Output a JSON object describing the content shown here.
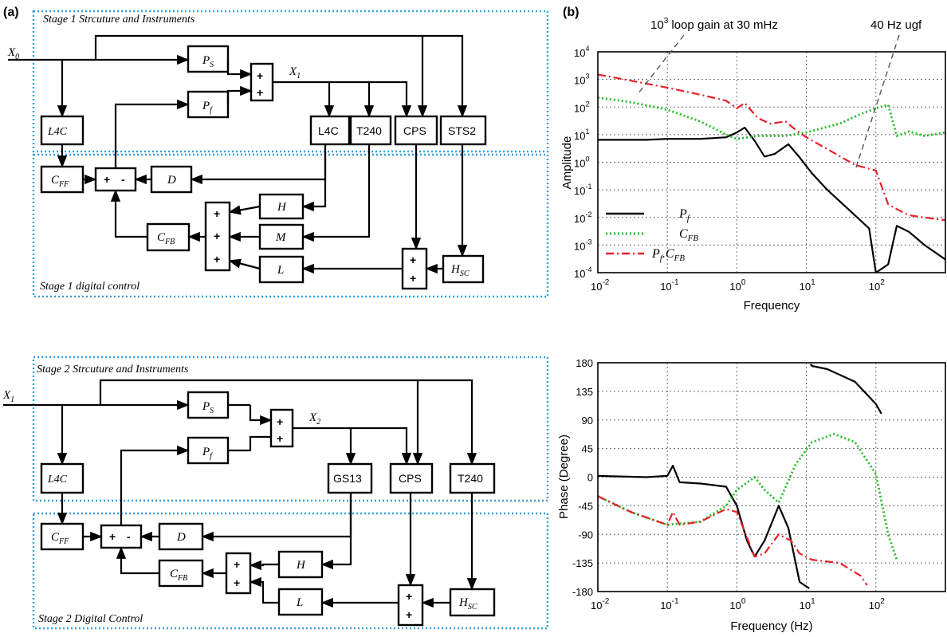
{
  "panel_labels": {
    "a": "(a)",
    "b": "(b)"
  },
  "stage1": {
    "title": "Stage 1 Strcuture and Instruments",
    "control_title": "Stage 1 digital control",
    "input": "X",
    "input_sub": "0",
    "output": "X",
    "output_sub": "1",
    "blocks": {
      "ps": "P",
      "ps_sub": "S",
      "pf": "P",
      "pf_sub": "f",
      "l4c_in": "L4C",
      "l4c": "L4C",
      "t240": "T240",
      "cps": "CPS",
      "sts2": "STS2",
      "cff": "C",
      "cff_sub": "FF",
      "d": "D",
      "h": "H",
      "m": "M",
      "l": "L",
      "cfb": "C",
      "cfb_sub": "FB",
      "hsc": "H",
      "hsc_sub": "SC"
    }
  },
  "stage2": {
    "title": "Stage 2 Strcuture and Instruments",
    "control_title": "Stage 2 Digital Control",
    "input": "X",
    "input_sub": "1",
    "output": "X",
    "output_sub": "2",
    "blocks": {
      "ps": "P",
      "ps_sub": "S",
      "pf": "P",
      "pf_sub": "f",
      "l4c_in": "L4C",
      "gs13": "GS13",
      "cps": "CPS",
      "t240": "T240",
      "cff": "C",
      "cff_sub": "FF",
      "d": "D",
      "h": "H",
      "l": "L",
      "cfb": "C",
      "cfb_sub": "FB",
      "hsc": "H",
      "hsc_sub": "SC"
    }
  },
  "sum_signs": {
    "plus": "+",
    "minus": "-"
  },
  "amplitude_plot": {
    "ylabel": "Amplitude",
    "xlabel": "Frequency",
    "annotation_left_base": "10",
    "annotation_left_exp": "3",
    "annotation_left_rest": " loop gain at 30 mHz",
    "annotation_right": "40 Hz ugf",
    "x_tick_base": "10",
    "x_tick_exps": [
      "-2",
      "-1",
      "0",
      "1",
      "2"
    ],
    "y_tick_base": "10",
    "y_tick_exps": [
      "4",
      "3",
      "2",
      "1",
      "0",
      "-1",
      "-2",
      "-3",
      "-4"
    ],
    "legend": [
      {
        "name": "P",
        "sub": "f",
        "color": "#000000",
        "style": "solid"
      },
      {
        "name": "C",
        "sub": "FB",
        "color": "#22bb22",
        "style": "dotted"
      },
      {
        "name": "P",
        "sub": "f",
        "extra": ".C",
        "extra_sub": "FB",
        "color": "#e8202a",
        "style": "dashdot"
      }
    ]
  },
  "phase_plot": {
    "ylabel": "Phase (Degree)",
    "xlabel": "Frequency (Hz)",
    "x_tick_base": "10",
    "x_tick_exps": [
      "-2",
      "-1",
      "0",
      "1",
      "2"
    ],
    "y_ticks": [
      "180",
      "135",
      "90",
      "45",
      "0",
      "-45",
      "-90",
      "-135",
      "-180"
    ]
  },
  "chart_data": [
    {
      "type": "line",
      "xlabel": "Frequency",
      "ylabel": "Amplitude",
      "x_scale": "log",
      "y_scale": "log",
      "xlim": [
        0.01,
        1000
      ],
      "ylim": [
        0.0001,
        10000
      ],
      "grid": true,
      "legend_position": "bottom-left",
      "series": [
        {
          "name": "P_f",
          "color": "#000000",
          "x": [
            0.01,
            0.05,
            0.1,
            0.3,
            0.7,
            1.0,
            1.3,
            1.8,
            2.5,
            3.5,
            5.5,
            8,
            12,
            20,
            40,
            80,
            100,
            150,
            200,
            300,
            500,
            1000
          ],
          "y": [
            6.5,
            6.5,
            7,
            7,
            8,
            12,
            18,
            6,
            1.6,
            2,
            4.5,
            1.5,
            0.4,
            0.1,
            0.02,
            0.004,
            0.0001,
            0.0002,
            0.005,
            0.003,
            0.001,
            0.0003
          ]
        },
        {
          "name": "C_FB",
          "color": "#22bb22",
          "x": [
            0.01,
            0.03,
            0.1,
            0.3,
            0.7,
            1,
            2,
            5,
            10,
            30,
            60,
            100,
            150,
            200,
            300,
            500,
            1000
          ],
          "y": [
            220,
            150,
            80,
            30,
            10,
            7,
            9,
            9,
            12,
            25,
            55,
            90,
            120,
            9,
            13,
            9,
            12
          ]
        },
        {
          "name": "P_f.C_FB",
          "color": "#e8202a",
          "x": [
            0.01,
            0.03,
            0.1,
            0.3,
            0.7,
            1.0,
            1.3,
            2,
            3,
            5,
            7,
            10,
            20,
            50,
            100,
            150,
            200,
            300,
            500,
            1000
          ],
          "y": [
            1500,
            900,
            500,
            280,
            170,
            90,
            140,
            40,
            25,
            30,
            15,
            8,
            3,
            0.8,
            0.5,
            0.03,
            0.02,
            0.012,
            0.01,
            0.008
          ]
        }
      ]
    },
    {
      "type": "line",
      "xlabel": "Frequency (Hz)",
      "ylabel": "Phase (Degree)",
      "x_scale": "log",
      "xlim": [
        0.01,
        1000
      ],
      "ylim": [
        -180,
        180
      ],
      "grid": true,
      "series": [
        {
          "name": "P_f",
          "color": "#000000",
          "x": [
            0.01,
            0.05,
            0.1,
            0.12,
            0.15,
            0.3,
            0.7,
            1.0,
            1.4,
            1.8,
            2.5,
            4,
            5.5,
            8,
            11,
            11.5,
            12,
            20,
            50,
            100,
            120
          ],
          "y": [
            2,
            0,
            2,
            18,
            -8,
            -10,
            -15,
            -45,
            -100,
            -125,
            -100,
            -45,
            -80,
            -165,
            -175,
            178,
            175,
            170,
            150,
            115,
            100
          ]
        },
        {
          "name": "C_FB",
          "color": "#22bb22",
          "x": [
            0.01,
            0.03,
            0.1,
            0.3,
            0.7,
            1.0,
            1.8,
            2.5,
            4,
            7,
            12,
            25,
            50,
            100,
            150,
            200
          ],
          "y": [
            -30,
            -55,
            -75,
            -70,
            -45,
            -20,
            0,
            -20,
            -40,
            20,
            55,
            68,
            55,
            5,
            -90,
            -130
          ]
        },
        {
          "name": "P_f.C_FB",
          "color": "#e8202a",
          "x": [
            0.01,
            0.03,
            0.1,
            0.12,
            0.15,
            0.3,
            0.7,
            1.0,
            1.4,
            1.8,
            2.5,
            4,
            6,
            8,
            12,
            30,
            60,
            75,
            80,
            85
          ],
          "y": [
            -30,
            -55,
            -75,
            -55,
            -75,
            -70,
            -50,
            -55,
            -95,
            -125,
            -120,
            -90,
            -100,
            -120,
            -130,
            -135,
            -155,
            -170,
            178,
            -150
          ]
        }
      ]
    }
  ]
}
